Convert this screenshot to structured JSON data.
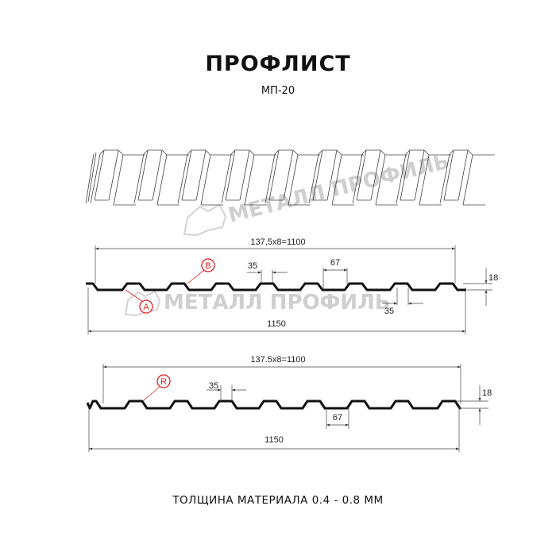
{
  "header": {
    "title": "ПРОФЛИСТ",
    "subtitle": "МП-20"
  },
  "watermark": {
    "text": "МЕТАЛЛ ПРОФИЛЬ"
  },
  "profile_1": {
    "pitch_label": "137,5x8=1100",
    "width_label": "1150",
    "top_rib_label": "35",
    "bottom_rib_label": "35",
    "groove_label": "67",
    "height_label": "18",
    "callouts": [
      "A",
      "B"
    ]
  },
  "profile_2": {
    "pitch_label": "137.5x8=1100",
    "width_label": "1150",
    "top_rib_label": "35",
    "groove_label": "67",
    "height_label": "18",
    "callouts": [
      "R"
    ]
  },
  "footer": {
    "thickness": "ТОЛЩИНА МАТЕРИАЛА 0.4 - 0.8 ММ"
  },
  "colors": {
    "callout": "#e41e1e",
    "profile": "#111111",
    "watermark": "#cfcfcf"
  }
}
